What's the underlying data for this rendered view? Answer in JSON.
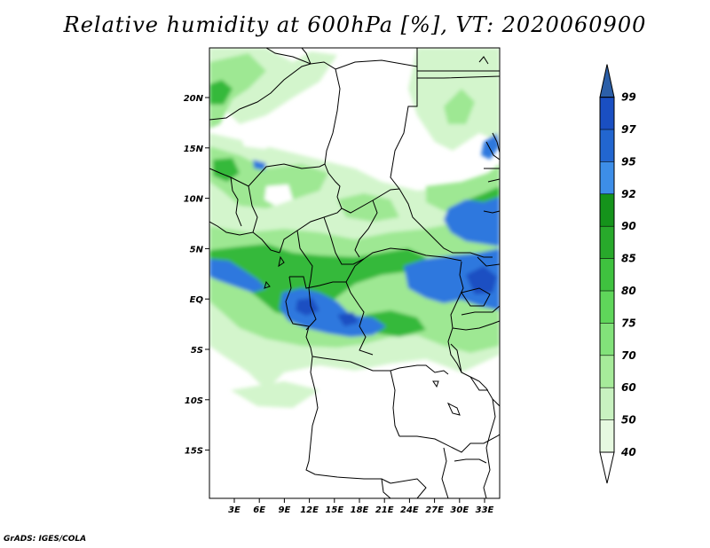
{
  "title": "Relative humidity at 600hPa [%], VT: 2020060900",
  "credit": "GrADS: IGES/COLA",
  "map": {
    "lat_ticks": [
      "20N",
      "15N",
      "10N",
      "5N",
      "EQ",
      "5S",
      "10S",
      "15S"
    ],
    "lon_ticks": [
      "3E",
      "6E",
      "9E",
      "12E",
      "15E",
      "18E",
      "21E",
      "24E",
      "27E",
      "30E",
      "33E"
    ]
  },
  "colorbar": {
    "levels": [
      "40",
      "50",
      "60",
      "70",
      "75",
      "80",
      "85",
      "90",
      "92",
      "95",
      "97",
      "99"
    ],
    "colors": [
      "#ffffff",
      "#e6f9e0",
      "#c8f2c0",
      "#a6eb9a",
      "#82e27a",
      "#5fd65a",
      "#3fc23f",
      "#28a92b",
      "#15931b",
      "#3d8ee8",
      "#2266d0",
      "#1a4fc2",
      "#2c5fa8"
    ]
  }
}
